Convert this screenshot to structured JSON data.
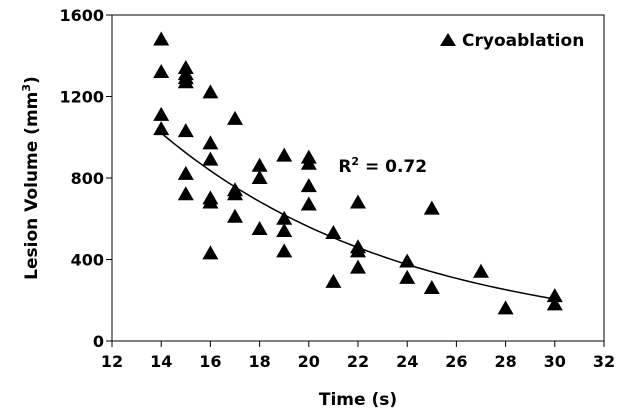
{
  "chart_data": {
    "type": "scatter",
    "xlabel": "Time (s)",
    "ylabel_main": "Lesion Volume (mm",
    "ylabel_sup": "3",
    "ylabel_close": ")",
    "xlim": [
      12,
      32
    ],
    "ylim": [
      0,
      1600
    ],
    "xticks": [
      12,
      14,
      16,
      18,
      20,
      22,
      24,
      26,
      28,
      30,
      32
    ],
    "yticks": [
      0,
      400,
      800,
      1200,
      1600
    ],
    "grid": false,
    "legend_position": "top-right",
    "series": [
      {
        "name": "Cryoablation",
        "marker": "triangle",
        "color": "#000000",
        "points": [
          [
            14,
            1480
          ],
          [
            14,
            1320
          ],
          [
            14,
            1110
          ],
          [
            14,
            1040
          ],
          [
            15,
            1340
          ],
          [
            15,
            1310
          ],
          [
            15,
            1290
          ],
          [
            15,
            1270
          ],
          [
            15,
            1030
          ],
          [
            15,
            820
          ],
          [
            15,
            720
          ],
          [
            16,
            1220
          ],
          [
            16,
            970
          ],
          [
            16,
            890
          ],
          [
            16,
            700
          ],
          [
            16,
            680
          ],
          [
            16,
            430
          ],
          [
            17,
            1090
          ],
          [
            17,
            740
          ],
          [
            17,
            720
          ],
          [
            17,
            610
          ],
          [
            18,
            860
          ],
          [
            18,
            800
          ],
          [
            18,
            550
          ],
          [
            19,
            910
          ],
          [
            19,
            600
          ],
          [
            19,
            540
          ],
          [
            19,
            440
          ],
          [
            20,
            900
          ],
          [
            20,
            870
          ],
          [
            20,
            760
          ],
          [
            20,
            670
          ],
          [
            21,
            530
          ],
          [
            21,
            290
          ],
          [
            22,
            680
          ],
          [
            22,
            460
          ],
          [
            22,
            440
          ],
          [
            22,
            360
          ],
          [
            24,
            390
          ],
          [
            24,
            310
          ],
          [
            25,
            650
          ],
          [
            25,
            260
          ],
          [
            27,
            340
          ],
          [
            28,
            160
          ],
          [
            30,
            220
          ],
          [
            30,
            180
          ]
        ]
      }
    ],
    "trendline": {
      "type": "exponential",
      "x_range": [
        14,
        30
      ],
      "a": 4140,
      "b": -0.1
    },
    "annotation": {
      "text_main": "R",
      "text_sup": "2",
      "text_rest": " = 0.72",
      "x": 21.2,
      "y": 830
    }
  }
}
